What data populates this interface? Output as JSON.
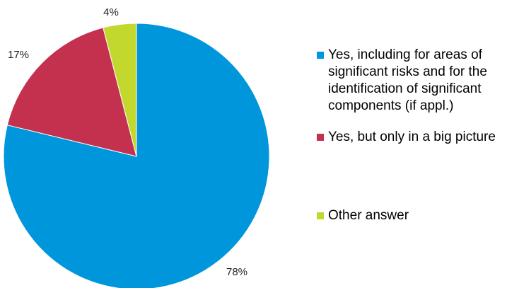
{
  "chart_data": {
    "type": "pie",
    "start_angle_deg": 0,
    "direction": "clockwise",
    "legend_position": "right",
    "slices": [
      {
        "label": "Yes, including for areas of significant risks and for the identification of significant components (if appl.)",
        "value": 78,
        "display": "78%",
        "color": "#0096DB"
      },
      {
        "label": "Yes, but only in a big picture",
        "value": 17,
        "display": "17%",
        "color": "#C4314F"
      },
      {
        "label": "Other answer",
        "value": 4,
        "display": "4%",
        "color": "#C2D82E"
      }
    ]
  }
}
